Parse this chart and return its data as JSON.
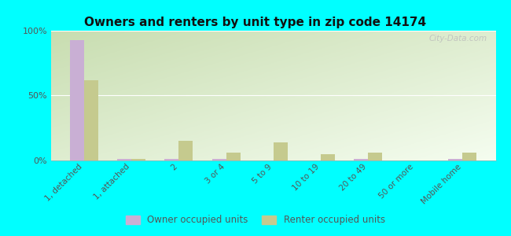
{
  "title": "Owners and renters by unit type in zip code 14174",
  "categories": [
    "1, detached",
    "1, attached",
    "2",
    "3 or 4",
    "5 to 9",
    "10 to 19",
    "20 to 49",
    "50 or more",
    "Mobile home"
  ],
  "owner_values": [
    93,
    1,
    1,
    1,
    0,
    0,
    1,
    0,
    1
  ],
  "renter_values": [
    62,
    1,
    15,
    6,
    14,
    5,
    6,
    0,
    6
  ],
  "owner_color": "#c9afd4",
  "renter_color": "#c5ca8e",
  "background_color": "#00ffff",
  "plot_bg_topleft": "#c8ddb0",
  "plot_bg_bottomright": "#f0f8e8",
  "ylim": [
    0,
    100
  ],
  "yticks": [
    0,
    50,
    100
  ],
  "ytick_labels": [
    "0%",
    "50%",
    "100%"
  ],
  "watermark": "City-Data.com",
  "legend_owner": "Owner occupied units",
  "legend_renter": "Renter occupied units",
  "bar_width": 0.3
}
